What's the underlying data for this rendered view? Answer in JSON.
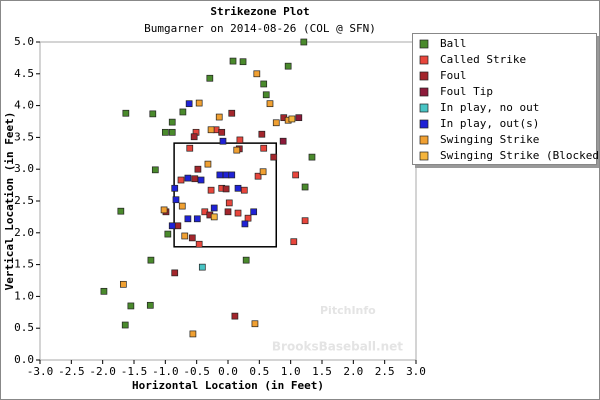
{
  "chart_data": {
    "type": "scatter",
    "title": "Strikezone Plot",
    "subtitle": "Bumgarner on 2014-08-26 (COL @ SFN)",
    "x_label": "Horizontal Location (in Feet)",
    "y_label": "Vertical Location (in Feet)",
    "watermarks": [
      "PitchInfo",
      "BrooksBaseball.net"
    ],
    "xlim": [
      -3.0,
      3.0
    ],
    "ylim": [
      0.0,
      5.0
    ],
    "xticks": [
      {
        "value": -3.0,
        "label": "-3.0"
      },
      {
        "value": -2.5,
        "label": "-2.5"
      },
      {
        "value": -2.0,
        "label": "-2.0"
      },
      {
        "value": -1.5,
        "label": "-1.5"
      },
      {
        "value": -1.0,
        "label": "-1.0"
      },
      {
        "value": -0.5,
        "label": "-0.5"
      },
      {
        "value": 0,
        "label": "0.0"
      },
      {
        "value": 0.5,
        "label": "0.5"
      },
      {
        "value": 1.0,
        "label": "1.0"
      },
      {
        "value": 1.5,
        "label": "1.5"
      },
      {
        "value": 2.0,
        "label": "2.0"
      },
      {
        "value": 2.5,
        "label": "2.5"
      },
      {
        "value": 3.0,
        "label": "3.0"
      }
    ],
    "yticks": [
      {
        "value": 0,
        "label": "0.0"
      },
      {
        "value": 0.5,
        "label": "0.5"
      },
      {
        "value": 1.0,
        "label": "1.0"
      },
      {
        "value": 1.5,
        "label": "1.5"
      },
      {
        "value": 2.0,
        "label": "2.0"
      },
      {
        "value": 2.5,
        "label": "2.5"
      },
      {
        "value": 3.0,
        "label": "3.0"
      },
      {
        "value": 3.5,
        "label": "3.5"
      },
      {
        "value": 4.0,
        "label": "4.0"
      },
      {
        "value": 4.5,
        "label": "4.5"
      },
      {
        "value": 5.0,
        "label": "5.0"
      }
    ],
    "grid": false,
    "legend": "top-right",
    "strike_zone": {
      "x": [
        -0.86,
        0.77
      ],
      "y": [
        1.78,
        3.41
      ]
    },
    "series": [
      {
        "name": "Ball",
        "color": "#4a8a2c",
        "x": [
          1.21,
          0.08,
          0.24,
          0.96,
          -0.29,
          0.57,
          0.61,
          -1.63,
          -0.72,
          -1.2,
          -0.89,
          -1.0,
          -0.89,
          1.34,
          -1.16,
          1.23,
          -1.71,
          -0.96,
          -1.23,
          0.29,
          -1.98,
          -1.55,
          -1.24,
          -1.64
        ],
        "values": [
          5.0,
          4.7,
          4.69,
          4.62,
          4.43,
          4.34,
          4.17,
          3.88,
          3.9,
          3.87,
          3.74,
          3.58,
          3.58,
          3.19,
          2.99,
          2.72,
          2.34,
          1.98,
          1.57,
          1.57,
          1.08,
          0.85,
          0.86,
          0.55
        ]
      },
      {
        "name": "Called Strike",
        "color": "#e8463c",
        "x": [
          -0.51,
          -0.19,
          -0.61,
          0.19,
          0.57,
          -0.75,
          -0.27,
          -0.1,
          0.26,
          -0.37,
          0.02,
          0.48,
          -0.46,
          1.23,
          1.08,
          0.16,
          0.32,
          1.05
        ],
        "values": [
          3.58,
          3.62,
          3.33,
          3.46,
          3.33,
          2.83,
          2.67,
          2.7,
          2.67,
          2.33,
          2.47,
          2.89,
          1.82,
          2.19,
          2.91,
          2.31,
          2.23,
          1.86
        ]
      },
      {
        "name": "Foul",
        "color": "#a3262c",
        "x": [
          0.06,
          -0.54,
          -0.1,
          0.18,
          0.54,
          -0.48,
          -0.53,
          0.73,
          -0.99,
          -0.8,
          0.0,
          -0.57,
          0.89,
          0.11,
          -0.85,
          -0.03,
          -0.29
        ],
        "values": [
          3.88,
          3.51,
          3.58,
          3.32,
          3.55,
          3.0,
          2.85,
          3.19,
          2.33,
          2.11,
          2.33,
          1.92,
          3.81,
          0.69,
          1.37,
          2.69,
          2.28
        ]
      },
      {
        "name": "Foul Tip",
        "color": "#8c1a3a",
        "x": [
          1.13,
          0.88
        ],
        "values": [
          3.81,
          3.44
        ]
      },
      {
        "name": "In play, no out",
        "color": "#48c4c4",
        "x": [
          -0.41
        ],
        "values": [
          1.46
        ]
      },
      {
        "name": "In play, out(s)",
        "color": "#1f22d6",
        "x": [
          -0.62,
          -0.08,
          -0.85,
          -0.64,
          -0.43,
          -0.13,
          -0.03,
          0.06,
          0.16,
          -0.83,
          -0.89,
          -0.64,
          -0.22,
          0.41,
          -0.49,
          0.27
        ],
        "values": [
          4.03,
          3.44,
          2.7,
          2.86,
          2.83,
          2.91,
          2.91,
          2.91,
          2.7,
          2.52,
          2.11,
          2.22,
          2.39,
          2.33,
          2.22,
          2.14
        ]
      },
      {
        "name": "Swinging Strike",
        "color": "#f0a032",
        "x": [
          -0.46,
          -0.27,
          -0.14,
          0.77,
          0.46,
          -1.02,
          -0.32,
          0.14,
          0.56,
          0.96,
          -0.69,
          0.43,
          -0.56,
          -1.67,
          0.67,
          -0.73
        ],
        "values": [
          4.04,
          3.62,
          3.82,
          3.73,
          4.5,
          2.36,
          3.08,
          3.3,
          2.96,
          3.77,
          1.95,
          0.57,
          0.41,
          1.19,
          4.03,
          2.42
        ]
      },
      {
        "name": "Swinging Strike (Blocked)",
        "color": "#f5b53c",
        "x": [
          1.02,
          -0.22
        ],
        "values": [
          3.79,
          2.25
        ]
      }
    ]
  }
}
